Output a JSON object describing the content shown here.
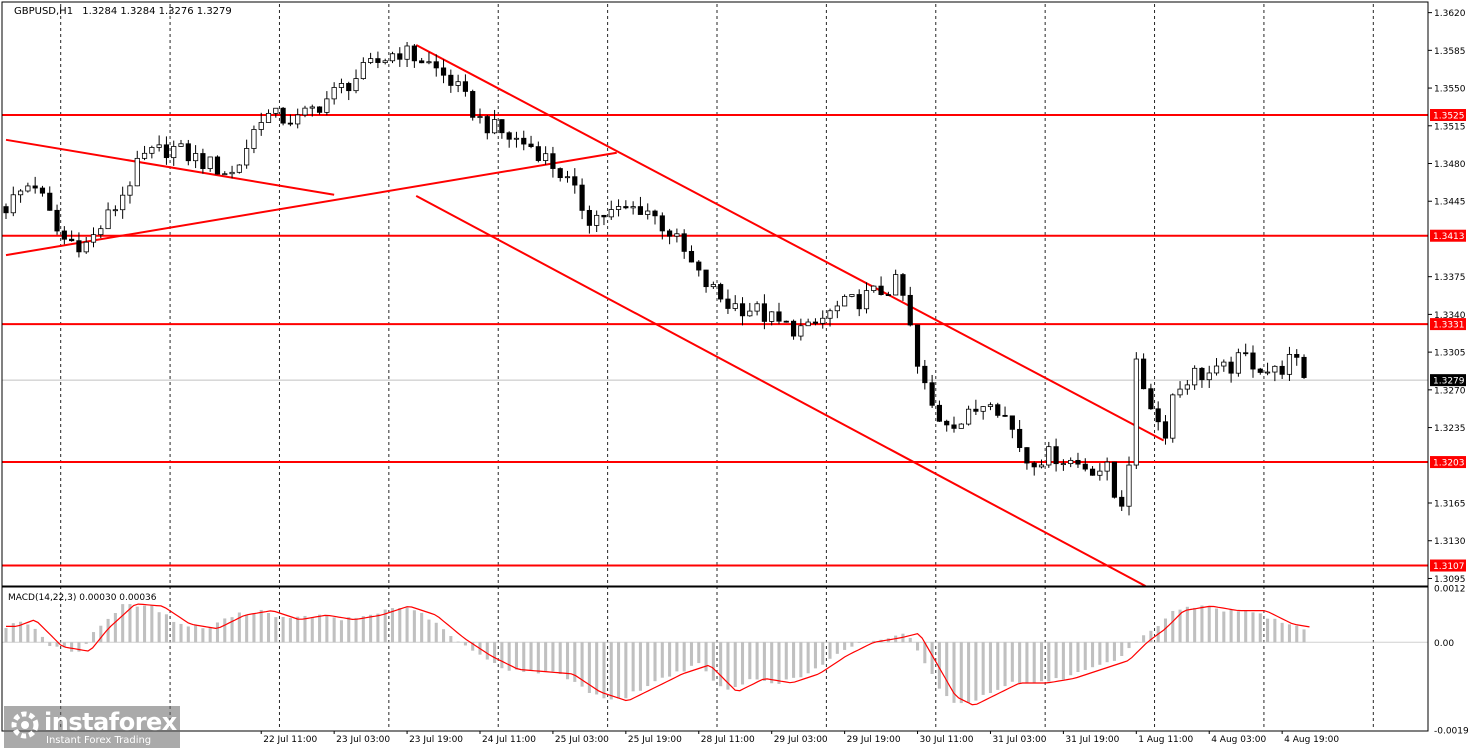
{
  "header": {
    "symbol": "GBPUSD,H1",
    "ohlc": "1.3284 1.3284 1.3276 1.3279"
  },
  "colors": {
    "background": "#ffffff",
    "candle": "#000000",
    "level_line": "#ff0000",
    "trend_line": "#ff0000",
    "current_price_line": "#c0c0c0",
    "macd_histogram": "#c0c0c0",
    "macd_signal": "#ff0000",
    "grid": "#000000"
  },
  "branding": {
    "name": "instaforex",
    "tagline": "Instant Forex Trading",
    "icon": "instaforex-logo-icon"
  },
  "chart_data": {
    "type": "candlestick",
    "symbol": "GBPUSD",
    "timeframe": "H1",
    "grid": true,
    "price_axis": {
      "ylim": [
        1.3088,
        1.3628
      ],
      "ticks": [
        "1.3620",
        "1.3585",
        "1.3550",
        "1.3515",
        "1.3480",
        "1.3445",
        "1.3375",
        "1.3340",
        "1.3305",
        "1.3270",
        "1.3235",
        "1.3165",
        "1.3130",
        "1.3095"
      ]
    },
    "time_axis": {
      "x_range": [
        0,
        156
      ],
      "labels": [
        {
          "x": 28,
          "label": "22 Jul 11:00"
        },
        {
          "x": 36,
          "label": "23 Jul 03:00"
        },
        {
          "x": 44,
          "label": "23 Jul 19:00"
        },
        {
          "x": 52,
          "label": "24 Jul 11:00"
        },
        {
          "x": 60,
          "label": "25 Jul 03:00"
        },
        {
          "x": 68,
          "label": "25 Jul 19:00"
        },
        {
          "x": 76,
          "label": "28 Jul 11:00"
        },
        {
          "x": 84,
          "label": "29 Jul 03:00"
        },
        {
          "x": 92,
          "label": "29 Jul 19:00"
        },
        {
          "x": 100,
          "label": "30 Jul 11:00"
        },
        {
          "x": 108,
          "label": "31 Jul 03:00"
        },
        {
          "x": 116,
          "label": "31 Jul 19:00"
        },
        {
          "x": 124,
          "label": "1 Aug 11:00"
        },
        {
          "x": 132,
          "label": "4 Aug 03:00"
        },
        {
          "x": 140,
          "label": "4 Aug 19:00"
        }
      ],
      "grid_x": [
        6,
        18,
        30,
        42,
        54,
        66,
        78,
        90,
        102,
        114,
        126,
        138,
        150
      ]
    },
    "current_price": "1.3279",
    "levels": [
      {
        "price": 1.3525,
        "label": "1.3525"
      },
      {
        "price": 1.3413,
        "label": "1.3413"
      },
      {
        "price": 1.3331,
        "label": "1.3331"
      },
      {
        "price": 1.3203,
        "label": "1.3203"
      },
      {
        "price": 1.3107,
        "label": "1.3107"
      }
    ],
    "trend_lines": [
      {
        "from": [
          0,
          1.3502
        ],
        "to": [
          36,
          1.3451
        ]
      },
      {
        "from": [
          0,
          1.3395
        ],
        "to": [
          67,
          1.349
        ]
      },
      {
        "from": [
          45,
          1.359
        ],
        "to": [
          127,
          1.3223
        ]
      },
      {
        "from": [
          45,
          1.345
        ],
        "to": [
          125,
          1.3088
        ]
      }
    ],
    "price_path": [
      [
        0,
        1.344
      ],
      [
        3,
        1.3465
      ],
      [
        6,
        1.341
      ],
      [
        9,
        1.3405
      ],
      [
        12,
        1.344
      ],
      [
        15,
        1.3485
      ],
      [
        18,
        1.3495
      ],
      [
        22,
        1.348
      ],
      [
        25,
        1.347
      ],
      [
        28,
        1.3525
      ],
      [
        32,
        1.352
      ],
      [
        36,
        1.3545
      ],
      [
        40,
        1.357
      ],
      [
        43,
        1.3585
      ],
      [
        46,
        1.3575
      ],
      [
        49,
        1.3555
      ],
      [
        52,
        1.352
      ],
      [
        55,
        1.3505
      ],
      [
        58,
        1.3495
      ],
      [
        61,
        1.347
      ],
      [
        64,
        1.343
      ],
      [
        67,
        1.3435
      ],
      [
        70,
        1.344
      ],
      [
        73,
        1.3415
      ],
      [
        76,
        1.3375
      ],
      [
        79,
        1.335
      ],
      [
        82,
        1.3345
      ],
      [
        85,
        1.333
      ],
      [
        88,
        1.3325
      ],
      [
        91,
        1.3345
      ],
      [
        94,
        1.3355
      ],
      [
        97,
        1.3365
      ],
      [
        98,
        1.337
      ],
      [
        99,
        1.3335
      ],
      [
        100,
        1.329
      ],
      [
        102,
        1.3245
      ],
      [
        105,
        1.324
      ],
      [
        108,
        1.3265
      ],
      [
        110,
        1.324
      ],
      [
        112,
        1.3205
      ],
      [
        115,
        1.321
      ],
      [
        118,
        1.32
      ],
      [
        121,
        1.3195
      ],
      [
        122,
        1.3155
      ],
      [
        123,
        1.3185
      ],
      [
        124,
        1.329
      ],
      [
        126,
        1.325
      ],
      [
        127,
        1.3225
      ],
      [
        128,
        1.3265
      ],
      [
        130,
        1.3285
      ],
      [
        133,
        1.3285
      ],
      [
        136,
        1.33
      ],
      [
        139,
        1.3285
      ],
      [
        141,
        1.3298
      ],
      [
        143,
        1.3279
      ]
    ],
    "macd": {
      "label": "MACD(14,22,3) 0.00030 0.00036",
      "ylim": [
        -0.00194,
        0.0012
      ],
      "ticks": [
        "0.0012",
        "0.00",
        "-0.00194"
      ],
      "path": [
        [
          0,
          0.00035
        ],
        [
          2,
          0.0005
        ],
        [
          5,
          -0.0001
        ],
        [
          8,
          -0.0002
        ],
        [
          10,
          0.0003
        ],
        [
          13,
          0.00085
        ],
        [
          16,
          0.0008
        ],
        [
          19,
          0.0004
        ],
        [
          22,
          0.0003
        ],
        [
          25,
          0.0006
        ],
        [
          28,
          0.0007
        ],
        [
          31,
          0.0005
        ],
        [
          34,
          0.0006
        ],
        [
          37,
          0.0005
        ],
        [
          40,
          0.0006
        ],
        [
          43,
          0.0008
        ],
        [
          46,
          0.0006
        ],
        [
          49,
          0.0001
        ],
        [
          52,
          -0.0003
        ],
        [
          55,
          -0.0006
        ],
        [
          58,
          -0.00065
        ],
        [
          61,
          -0.0007
        ],
        [
          64,
          -0.0011
        ],
        [
          67,
          -0.0013
        ],
        [
          70,
          -0.001
        ],
        [
          73,
          -0.0007
        ],
        [
          76,
          -0.0005
        ],
        [
          79,
          -0.0011
        ],
        [
          82,
          -0.0008
        ],
        [
          85,
          -0.0009
        ],
        [
          88,
          -0.0007
        ],
        [
          91,
          -0.0003
        ],
        [
          94,
          0.0
        ],
        [
          97,
          0.0001
        ],
        [
          99,
          0.0002
        ],
        [
          101,
          -0.0005
        ],
        [
          103,
          -0.0012
        ],
        [
          105,
          -0.0014
        ],
        [
          107,
          -0.0012
        ],
        [
          110,
          -0.0009
        ],
        [
          113,
          -0.0009
        ],
        [
          116,
          -0.0008
        ],
        [
          119,
          -0.0006
        ],
        [
          122,
          -0.0004
        ],
        [
          124,
          0.0
        ],
        [
          126,
          0.0003
        ],
        [
          128,
          0.0007
        ],
        [
          131,
          0.0008
        ],
        [
          134,
          0.0007
        ],
        [
          137,
          0.0007
        ],
        [
          140,
          0.0004
        ],
        [
          143,
          0.0003
        ]
      ]
    }
  }
}
